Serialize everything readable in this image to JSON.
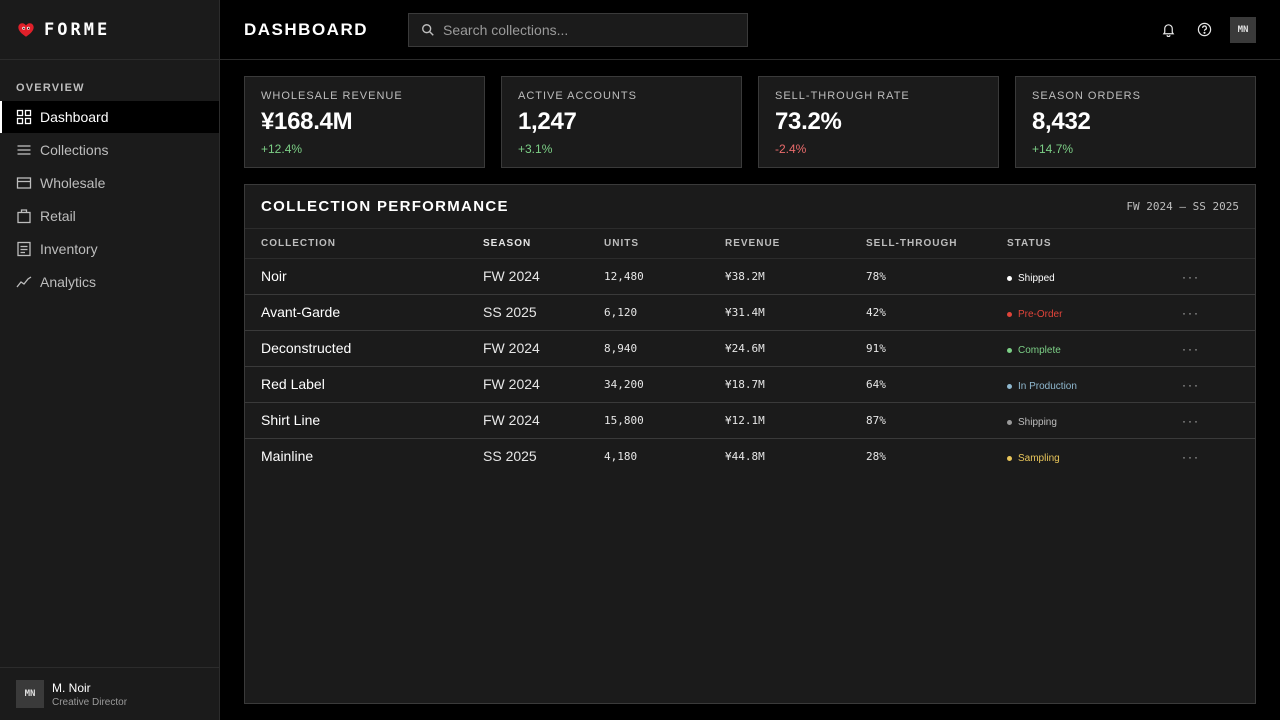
{
  "brand": {
    "name": "FORME"
  },
  "sidebar": {
    "section_label": "OVERVIEW",
    "items": [
      {
        "label": "Dashboard",
        "icon": "grid-icon",
        "active": true
      },
      {
        "label": "Collections",
        "icon": "lines-icon"
      },
      {
        "label": "Wholesale",
        "icon": "card-icon"
      },
      {
        "label": "Retail",
        "icon": "bag-icon"
      },
      {
        "label": "Inventory",
        "icon": "list-icon"
      },
      {
        "label": "Analytics",
        "icon": "trend-icon"
      }
    ],
    "user": {
      "initials": "MN",
      "name": "M. Noir",
      "role": "Creative Director"
    }
  },
  "header": {
    "title": "DASHBOARD",
    "search_placeholder": "Search collections...",
    "avatar_initials": "MN"
  },
  "stats": [
    {
      "label": "WHOLESALE REVENUE",
      "value": "¥168.4M",
      "delta": "+12.4%"
    },
    {
      "label": "ACTIVE ACCOUNTS",
      "value": "1,247",
      "delta": "+3.1%"
    },
    {
      "label": "SELL-THROUGH RATE",
      "value": "73.2%",
      "delta": "-2.4%"
    },
    {
      "label": "SEASON ORDERS",
      "value": "8,432",
      "delta": "+14.7%"
    }
  ],
  "panel": {
    "title": "COLLECTION PERFORMANCE",
    "range": "FW 2024 — SS 2025",
    "columns": [
      "COLLECTION",
      "SEASON",
      "UNITS",
      "REVENUE",
      "SELL-THROUGH",
      "STATUS"
    ],
    "rows": [
      {
        "collection": "Noir",
        "season": "FW 2024",
        "units": "12,480",
        "revenue": "¥38.2M",
        "sell_through": "78%",
        "status": "Shipped",
        "more": "···"
      },
      {
        "collection": "Avant-Garde",
        "season": "SS 2025",
        "units": "6,120",
        "revenue": "¥31.4M",
        "sell_through": "42%",
        "status": "Pre-Order",
        "more": "···"
      },
      {
        "collection": "Deconstructed",
        "season": "FW 2024",
        "units": "8,940",
        "revenue": "¥24.6M",
        "sell_through": "91%",
        "status": "Complete",
        "more": "···"
      },
      {
        "collection": "Red Label",
        "season": "FW 2024",
        "units": "34,200",
        "revenue": "¥18.7M",
        "sell_through": "64%",
        "status": "In Production",
        "more": "···"
      },
      {
        "collection": "Shirt Line",
        "season": "FW 2024",
        "units": "15,800",
        "revenue": "¥12.1M",
        "sell_through": "87%",
        "status": "Shipping",
        "more": "···"
      },
      {
        "collection": "Mainline",
        "season": "SS 2025",
        "units": "4,180",
        "revenue": "¥44.8M",
        "sell_through": "28%",
        "status": "Sampling",
        "more": "···"
      }
    ]
  },
  "colors": {
    "positive": "#7ccf86",
    "negative": "#ea6b6b",
    "status_shipped": "#ffffff",
    "status_preorder": "#e0443a",
    "status_complete": "#7ccf86",
    "status_in_production": "#8fb8cf",
    "status_shipping": "#9a9a9a",
    "status_sampling": "#e8c55a",
    "brand_heart": "#e0202a"
  }
}
